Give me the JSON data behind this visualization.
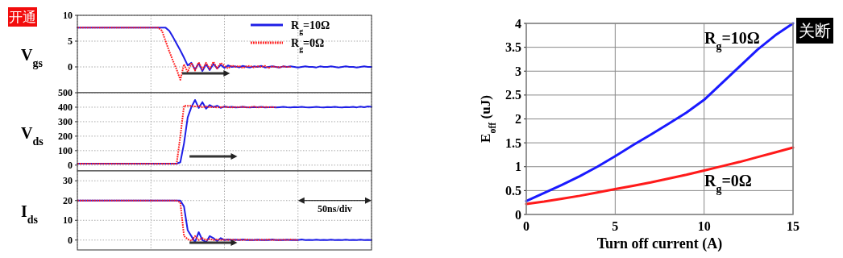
{
  "chart_data": [
    {
      "type": "line",
      "ylabel": "V$_{gs}$",
      "categories": [
        null,
        null,
        null,
        null,
        null,
        null,
        null,
        null,
        null,
        null,
        null,
        null,
        null,
        null,
        null,
        null,
        null,
        null,
        null,
        null,
        null,
        null,
        null,
        null,
        null,
        null,
        null,
        null,
        null,
        null,
        null,
        null,
        null,
        null,
        null,
        null,
        null,
        null,
        null,
        null,
        null,
        null,
        null,
        null,
        null,
        null,
        null,
        null,
        null,
        null,
        null,
        null,
        null,
        null,
        null,
        null,
        null,
        null,
        null,
        null,
        null,
        null,
        null,
        null,
        null,
        null,
        null,
        null,
        null,
        null,
        null,
        null,
        null,
        null,
        null,
        null,
        null,
        null,
        null,
        null,
        null
      ],
      "ylim": [
        -5,
        10
      ],
      "yticks": [
        0,
        5,
        10
      ],
      "grid": true,
      "tick_labels": "y",
      "legend": "top right",
      "annotations": [
        "开通",
        "50ns/div"
      ],
      "series": [
        {
          "name": "R$_{g}$=10Ω",
          "color": "#1f1fe6",
          "line_style": "solid",
          "values": [
            7.6,
            7.6,
            7.6,
            7.6,
            7.6,
            7.6,
            7.6,
            7.6,
            7.6,
            7.6,
            7.6,
            7.6,
            7.6,
            7.6,
            7.6,
            7.6,
            7.6,
            7.6,
            7.6,
            7.6,
            7.6,
            7.6,
            7.6,
            7.6,
            7.6,
            7.0,
            5.8,
            4.5,
            3.2,
            1.8,
            0.3,
            0.8,
            -0.5,
            0.7,
            -0.8,
            0.5,
            -0.6,
            0.6,
            -0.3,
            0.4,
            -0.2,
            0.3,
            0,
            0.1,
            -0.1,
            0.2,
            0,
            -0.1,
            0.1,
            0,
            0.2,
            -0.1,
            0,
            0.1,
            0,
            -0.1,
            0.1,
            0,
            0.1,
            0,
            -0.1,
            0,
            0.1,
            0,
            0,
            -0.1,
            0.1,
            0,
            0,
            0.1,
            0,
            -0.1,
            0,
            0.1,
            0,
            0,
            -0.1,
            0,
            0.1,
            0,
            0
          ]
        },
        {
          "name": "R$_{g}$=0Ω",
          "color": "#ff1a1a",
          "line_style": "dotted",
          "values": [
            7.6,
            7.6,
            7.6,
            7.6,
            7.6,
            7.6,
            7.6,
            7.6,
            7.6,
            7.6,
            7.6,
            7.6,
            7.6,
            7.6,
            7.6,
            7.6,
            7.6,
            7.6,
            7.6,
            7.6,
            7.6,
            7.6,
            7.6,
            7.0,
            5.0,
            3.0,
            1.2,
            -0.5,
            -2.5,
            0.5,
            -1.0,
            0.8,
            -0.7,
            0.9,
            -0.5,
            0.8,
            -0.4,
            1.0,
            -0.3,
            0.8,
            0.2,
            -0.3,
            0.3,
            0,
            0.2,
            -0.2,
            0.1,
            0.2,
            -0.1,
            0.1,
            0,
            0.2,
            -0.2,
            0.1,
            0,
            -0.1,
            0.1,
            0,
            0,
            null,
            null,
            null,
            null,
            null,
            null,
            null,
            null,
            null,
            null,
            null,
            null,
            null,
            null,
            null,
            null,
            null,
            null,
            null,
            null,
            null,
            null
          ]
        }
      ]
    },
    {
      "type": "line",
      "ylabel": "V$_{ds}$",
      "categories": [
        null,
        null,
        null,
        null,
        null,
        null,
        null,
        null,
        null,
        null,
        null,
        null,
        null,
        null,
        null,
        null,
        null,
        null,
        null,
        null,
        null,
        null,
        null,
        null,
        null,
        null,
        null,
        null,
        null,
        null,
        null,
        null,
        null,
        null,
        null,
        null,
        null,
        null,
        null,
        null,
        null,
        null,
        null,
        null,
        null,
        null,
        null,
        null,
        null,
        null,
        null,
        null,
        null,
        null,
        null,
        null,
        null,
        null,
        null,
        null,
        null,
        null,
        null,
        null,
        null,
        null,
        null,
        null,
        null,
        null,
        null,
        null,
        null,
        null,
        null,
        null,
        null,
        null,
        null,
        null,
        null
      ],
      "ylim": [
        -40,
        500
      ],
      "yticks": [
        0,
        100,
        200,
        300,
        400,
        500
      ],
      "grid": true,
      "tick_labels": "y",
      "series": [
        {
          "color": "#1f1fe6",
          "line_style": "solid",
          "values": [
            10,
            10,
            10,
            10,
            10,
            10,
            10,
            10,
            10,
            10,
            10,
            10,
            10,
            10,
            10,
            10,
            10,
            10,
            10,
            10,
            10,
            10,
            10,
            10,
            10,
            10,
            10,
            10,
            20,
            150,
            330,
            400,
            450,
            395,
            435,
            390,
            415,
            400,
            410,
            395,
            405,
            400,
            402,
            398,
            400,
            403,
            400,
            398,
            401,
            400,
            402,
            399,
            400,
            401,
            398,
            400,
            402,
            400,
            399,
            401,
            400,
            403,
            400,
            398,
            400,
            402,
            400,
            399,
            401,
            400,
            403,
            400,
            398,
            401,
            400,
            402,
            399,
            404,
            400,
            405,
            403
          ]
        },
        {
          "color": "#ff1a1a",
          "line_style": "dotted",
          "values": [
            10,
            10,
            10,
            10,
            10,
            10,
            10,
            10,
            10,
            10,
            10,
            10,
            10,
            10,
            10,
            10,
            10,
            10,
            10,
            10,
            10,
            10,
            10,
            10,
            10,
            10,
            10,
            10,
            200,
            410,
            410,
            410,
            405,
            410,
            400,
            405,
            400,
            402,
            398,
            400,
            403,
            400,
            398,
            401,
            400,
            402,
            399,
            400,
            404,
            398,
            400,
            402,
            400,
            399,
            401,
            null,
            null,
            null,
            null,
            null,
            null,
            null,
            null,
            null,
            null,
            null,
            null,
            null,
            null,
            null,
            null,
            null,
            null,
            null,
            null,
            null,
            null,
            null,
            null,
            null,
            null
          ]
        }
      ]
    },
    {
      "type": "line",
      "ylabel": "I$_{ds}$",
      "categories": [
        null,
        null,
        null,
        null,
        null,
        null,
        null,
        null,
        null,
        null,
        null,
        null,
        null,
        null,
        null,
        null,
        null,
        null,
        null,
        null,
        null,
        null,
        null,
        null,
        null,
        null,
        null,
        null,
        null,
        null,
        null,
        null,
        null,
        null,
        null,
        null,
        null,
        null,
        null,
        null,
        null,
        null,
        null,
        null,
        null,
        null,
        null,
        null,
        null,
        null,
        null,
        null,
        null,
        null,
        null,
        null,
        null,
        null,
        null,
        null,
        null,
        null,
        null,
        null,
        null,
        null,
        null,
        null,
        null,
        null,
        null,
        null,
        null,
        null,
        null,
        null,
        null,
        null,
        null,
        null,
        null
      ],
      "ylim": [
        -5,
        35
      ],
      "yticks": [
        0,
        10,
        20,
        30
      ],
      "grid": true,
      "tick_labels": "y",
      "series": [
        {
          "color": "#1f1fe6",
          "line_style": "solid",
          "values": [
            20,
            20,
            20,
            20,
            20,
            20,
            20,
            20,
            20,
            20,
            20,
            20,
            20,
            20,
            20,
            20,
            20,
            20,
            20,
            20,
            20,
            20,
            20,
            20,
            20,
            20,
            20,
            20,
            20,
            17,
            5,
            2,
            -1,
            4,
            0,
            -1,
            2,
            1,
            -0.5,
            1,
            0,
            0.3,
            0,
            0.2,
            0,
            0.3,
            0,
            0.1,
            0,
            0.2,
            0,
            0.1,
            0,
            0.3,
            0,
            0.1,
            0,
            0.2,
            0,
            0.1,
            0,
            0.3,
            0,
            0.1,
            0,
            0.2,
            0,
            0.1,
            0,
            0.2,
            0,
            0.1,
            0,
            0.2,
            0,
            0.1,
            0,
            0.2,
            0,
            0.1,
            0
          ]
        },
        {
          "color": "#ff1a1a",
          "line_style": "dotted",
          "values": [
            20,
            20,
            20,
            20,
            20,
            20,
            20,
            20,
            20,
            20,
            20,
            20,
            20,
            20,
            20,
            20,
            20,
            20,
            20,
            20,
            20,
            20,
            20,
            20,
            20,
            20,
            20,
            20,
            19,
            2,
            0.5,
            -0.5,
            2,
            0,
            1,
            0,
            0.5,
            0,
            0.3,
            0,
            0.2,
            0,
            0.3,
            0,
            0.2,
            0,
            0.3,
            0,
            0.1,
            0,
            0.2,
            0,
            0.3,
            0,
            0.1,
            0,
            0.2,
            0,
            0.3,
            0.1,
            0,
            null,
            null,
            null,
            null,
            null,
            null,
            null,
            null,
            null,
            null,
            null,
            null,
            null,
            null,
            null,
            null,
            null,
            null,
            null,
            null
          ]
        }
      ]
    },
    {
      "type": "line",
      "xlabel": "Turn off current (A)",
      "ylabel": "E$_{off}$ (uJ)",
      "x": [
        0,
        1,
        2,
        3,
        4,
        5,
        6,
        7,
        8,
        9,
        10,
        11,
        12,
        13,
        14,
        15
      ],
      "xlim": [
        0,
        15
      ],
      "xticks": [
        0,
        5,
        10,
        15
      ],
      "ylim": [
        0,
        4
      ],
      "yticks": [
        0,
        0.5,
        1,
        1.5,
        2,
        2.5,
        3,
        3.5,
        4
      ],
      "grid": true,
      "annotations": [
        "关断"
      ],
      "series": [
        {
          "name": "R$_{g}$=10Ω",
          "color": "#1a1aff",
          "line_style": "solid",
          "values": [
            0.28,
            0.45,
            0.62,
            0.8,
            1.0,
            1.22,
            1.45,
            1.67,
            1.9,
            2.13,
            2.4,
            2.75,
            3.1,
            3.45,
            3.75,
            4.0
          ]
        },
        {
          "name": "R$_{g}$=0Ω",
          "color": "#ff1a1a",
          "line_style": "solid",
          "values": [
            0.22,
            0.27,
            0.33,
            0.39,
            0.46,
            0.53,
            0.6,
            0.67,
            0.75,
            0.83,
            0.92,
            1.01,
            1.1,
            1.2,
            1.3,
            1.4
          ]
        }
      ]
    }
  ]
}
